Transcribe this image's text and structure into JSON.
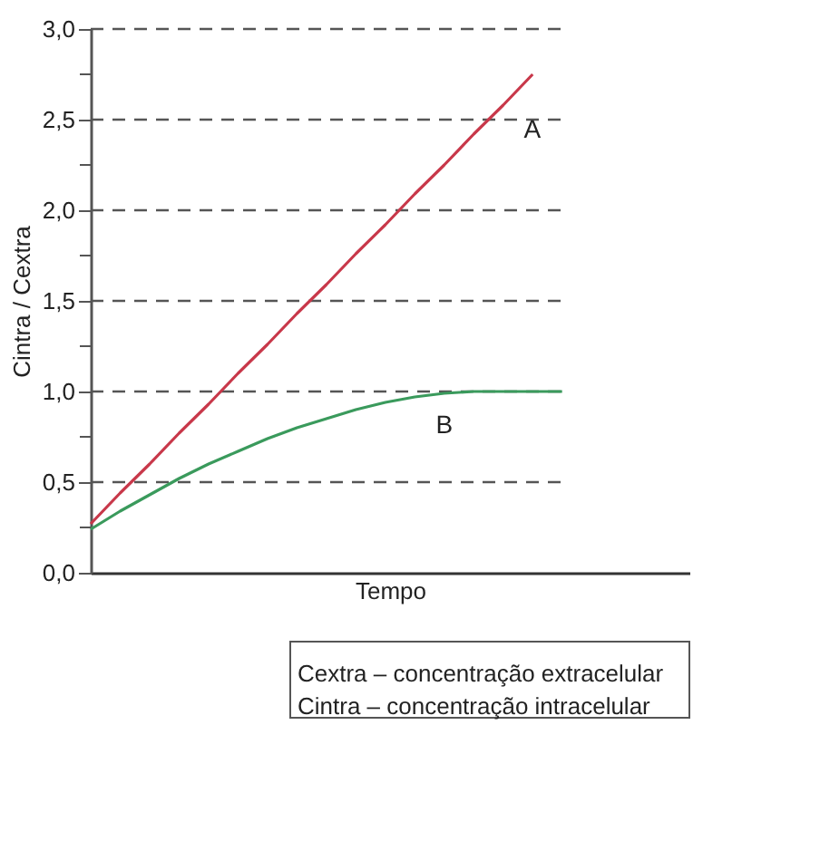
{
  "chart_data": {
    "type": "line",
    "xlabel": "Tempo",
    "ylabel": "Cintra / Cextra",
    "categories": [
      null,
      null,
      null,
      null,
      null,
      null,
      null,
      null,
      null,
      null,
      null,
      null,
      null,
      null,
      null,
      null,
      null
    ],
    "series": [
      {
        "name": "A",
        "color": "#c8384a",
        "values": [
          0.27,
          0.44,
          0.6,
          0.77,
          0.93,
          1.1,
          1.26,
          1.43,
          1.59,
          1.76,
          1.92,
          2.09,
          2.25,
          2.42,
          2.58,
          2.75,
          null
        ]
      },
      {
        "name": "B",
        "color": "#3a9a5c",
        "values": [
          0.24,
          0.34,
          0.43,
          0.52,
          0.6,
          0.67,
          0.74,
          0.8,
          0.85,
          0.9,
          0.94,
          0.97,
          0.99,
          1.0,
          1.0,
          1.0,
          1.0
        ]
      }
    ],
    "ylim": [
      0,
      3.0
    ],
    "yticks": [
      {
        "value": 0,
        "label": "0,0"
      },
      {
        "value": 0.25,
        "label": null
      },
      {
        "value": 0.5,
        "label": "0,5"
      },
      {
        "value": 0.75,
        "label": null
      },
      {
        "value": 1.0,
        "label": "1,0"
      },
      {
        "value": 1.25,
        "label": null
      },
      {
        "value": 1.5,
        "label": "1,5"
      },
      {
        "value": 1.75,
        "label": null
      },
      {
        "value": 2.0,
        "label": "2,0"
      },
      {
        "value": 2.25,
        "label": null
      },
      {
        "value": 2.5,
        "label": "2,5"
      },
      {
        "value": 2.75,
        "label": null
      },
      {
        "value": 3.0,
        "label": "3,0"
      }
    ],
    "grid": "y",
    "line_style": "solid",
    "marker": "none",
    "legend": false,
    "tick_labels": "y",
    "annotations": [
      "Cextra – concentração extracelular",
      "Cintra – concentração intracelular"
    ]
  }
}
